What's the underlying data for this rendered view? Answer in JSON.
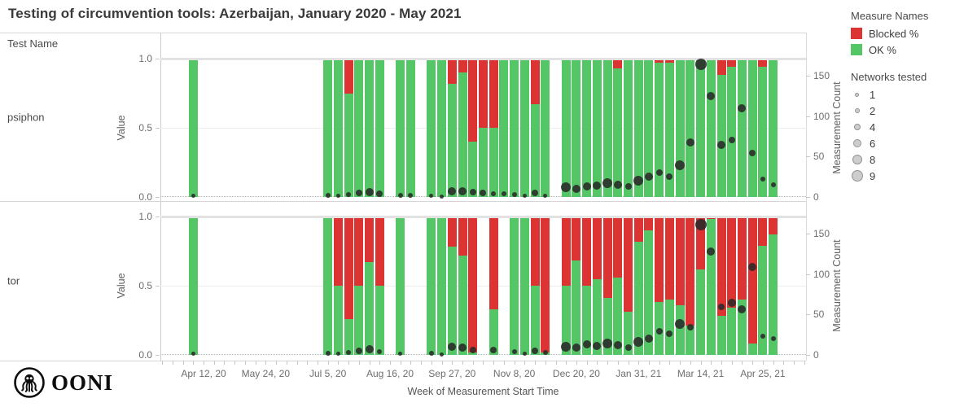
{
  "page": {
    "title": "Testing of circumvention tools: Azerbaijan, January 2020 - May 2021",
    "test_name_header": "Test Name"
  },
  "rows": [
    {
      "label": "psiphon"
    },
    {
      "label": "tor"
    }
  ],
  "axes": {
    "value_label": "Value",
    "value_ticks": [
      {
        "label": "1.0",
        "v": 1
      },
      {
        "label": "0.5",
        "v": 0.5
      },
      {
        "label": "0.0",
        "v": 0
      }
    ],
    "count_label": "Measurement Count",
    "count_ticks": [
      {
        "label": "150",
        "c": 150
      },
      {
        "label": "100",
        "c": 100
      },
      {
        "label": "50",
        "c": 50
      },
      {
        "label": "0",
        "c": 0
      }
    ],
    "x_label": "Week of Measurement Start Time",
    "x_major_ticks": [
      {
        "label": "Apr 12, 20",
        "week": 1
      },
      {
        "label": "May 24, 20",
        "week": 7
      },
      {
        "label": "Jul 5, 20",
        "week": 13
      },
      {
        "label": "Aug 16, 20",
        "week": 19
      },
      {
        "label": "Sep 27, 20",
        "week": 25
      },
      {
        "label": "Nov 8, 20",
        "week": 31
      },
      {
        "label": "Dec 20, 20",
        "week": 37
      },
      {
        "label": "Jan 31, 21",
        "week": 43
      },
      {
        "label": "Mar 14, 21",
        "week": 49
      },
      {
        "label": "Apr 25, 21",
        "week": 55
      }
    ],
    "minor_week_range": [
      -3,
      59
    ]
  },
  "legend": {
    "measure_names_title": "Measure Names",
    "measures": [
      {
        "label": "Blocked %",
        "color": "#db3432"
      },
      {
        "label": "OK %",
        "color": "#54c666"
      }
    ],
    "networks_title": "Networks tested",
    "network_sizes": [
      1,
      2,
      4,
      6,
      8,
      9
    ]
  },
  "chart_data": {
    "type": "bar",
    "subtype": "stacked-percentage bars (OK/Blocked) with measurement-count scatter overlay, small multiples by test name",
    "title": "Testing of circumvention tools: Azerbaijan, January 2020 - May 2021",
    "xlabel": "Week of Measurement Start Time",
    "value_axis": {
      "label": "Value",
      "range": [
        0,
        1
      ],
      "ticks": [
        0,
        0.5,
        1
      ]
    },
    "count_axis": {
      "label": "Measurement Count",
      "range": [
        0,
        171
      ],
      "ticks": [
        0,
        50,
        100,
        150
      ]
    },
    "colors": {
      "ok": "#54c666",
      "blocked": "#db3432",
      "dot": "#2a2a2a"
    },
    "legend_position": "right",
    "grid": "0.5 solid, 0.0 dotted baseline, top cap line",
    "bar_columns": [
      "week_index",
      "week_date",
      "ok_pct",
      "blocked_pct",
      "measurement_count",
      "networks_tested"
    ],
    "series": [
      {
        "name": "psiphon",
        "bars": [
          [
            0,
            "Apr 5, 20",
            1.0,
            0.0,
            2,
            1
          ],
          [
            13,
            "Jul 5, 20",
            1.0,
            0.0,
            2,
            2
          ],
          [
            14,
            "Jul 12, 20",
            1.0,
            0.0,
            2,
            1
          ],
          [
            15,
            "Jul 19, 20",
            0.75,
            0.25,
            3,
            2
          ],
          [
            16,
            "Jul 26, 20",
            1.0,
            0.0,
            5,
            4
          ],
          [
            17,
            "Aug 2, 20",
            1.0,
            0.0,
            6,
            6
          ],
          [
            18,
            "Aug 9, 20",
            1.0,
            0.0,
            4,
            4
          ],
          [
            20,
            "Aug 23, 20",
            1.0,
            0.0,
            2,
            2
          ],
          [
            21,
            "Aug 30, 20",
            1.0,
            0.0,
            2,
            2
          ],
          [
            23,
            "Sep 13, 20",
            1.0,
            0.0,
            2,
            1
          ],
          [
            24,
            "Sep 20, 20",
            1.0,
            0.0,
            1,
            1
          ],
          [
            25,
            "Sep 27, 20",
            0.82,
            0.18,
            7,
            6
          ],
          [
            26,
            "Oct 4, 20",
            0.9,
            0.1,
            7,
            6
          ],
          [
            27,
            "Oct 11, 20",
            0.4,
            0.6,
            6,
            4
          ],
          [
            28,
            "Oct 18, 20",
            0.5,
            0.5,
            5,
            4
          ],
          [
            29,
            "Oct 25, 20",
            0.5,
            0.5,
            4,
            2
          ],
          [
            30,
            "Nov 1, 20",
            1.0,
            0.0,
            4,
            2
          ],
          [
            31,
            "Nov 8, 20",
            1.0,
            0.0,
            3,
            2
          ],
          [
            32,
            "Nov 15, 20",
            1.0,
            0.0,
            2,
            1
          ],
          [
            33,
            "Nov 22, 20",
            0.67,
            0.33,
            5,
            4
          ],
          [
            34,
            "Nov 29, 20",
            1.0,
            0.0,
            2,
            1
          ],
          [
            36,
            "Dec 13, 20",
            1.0,
            0.0,
            12,
            8
          ],
          [
            37,
            "Dec 20, 20",
            1.0,
            0.0,
            10,
            6
          ],
          [
            38,
            "Dec 27, 20",
            1.0,
            0.0,
            13,
            6
          ],
          [
            39,
            "Jan 3, 21",
            1.0,
            0.0,
            14,
            6
          ],
          [
            40,
            "Jan 10, 21",
            1.0,
            0.0,
            17,
            8
          ],
          [
            41,
            "Jan 17, 21",
            0.93,
            0.07,
            15,
            6
          ],
          [
            42,
            "Jan 24, 21",
            1.0,
            0.0,
            13,
            4
          ],
          [
            43,
            "Jan 31, 21",
            1.0,
            0.0,
            20,
            8
          ],
          [
            44,
            "Feb 7, 21",
            1.0,
            0.0,
            25,
            6
          ],
          [
            45,
            "Feb 14, 21",
            0.97,
            0.03,
            30,
            4
          ],
          [
            46,
            "Feb 21, 21",
            0.97,
            0.03,
            25,
            4
          ],
          [
            47,
            "Feb 28, 21",
            1.0,
            0.0,
            39,
            8
          ],
          [
            48,
            "Mar 7, 21",
            1.0,
            0.0,
            67,
            6
          ],
          [
            49,
            "Mar 14, 21",
            1.0,
            0.0,
            164,
            9
          ],
          [
            50,
            "Mar 21, 21",
            1.0,
            0.0,
            125,
            6
          ],
          [
            51,
            "Mar 28, 21",
            0.88,
            0.12,
            64,
            6
          ],
          [
            52,
            "Apr 4, 21",
            0.94,
            0.06,
            70,
            4
          ],
          [
            53,
            "Apr 11, 21",
            1.0,
            0.0,
            110,
            6
          ],
          [
            54,
            "Apr 18, 21",
            1.0,
            0.0,
            54,
            4
          ],
          [
            55,
            "Apr 25, 21",
            0.94,
            0.06,
            22,
            2
          ],
          [
            56,
            "May 2, 21",
            1.0,
            0.0,
            15,
            2
          ]
        ]
      },
      {
        "name": "tor",
        "bars": [
          [
            0,
            "Apr 5, 20",
            1.0,
            0.0,
            2,
            1
          ],
          [
            13,
            "Jul 5, 20",
            1.0,
            0.0,
            2,
            2
          ],
          [
            14,
            "Jul 12, 20",
            0.5,
            0.5,
            2,
            1
          ],
          [
            15,
            "Jul 19, 20",
            0.26,
            0.74,
            3,
            2
          ],
          [
            16,
            "Jul 26, 20",
            0.5,
            0.5,
            5,
            4
          ],
          [
            17,
            "Aug 2, 20",
            0.67,
            0.33,
            7,
            6
          ],
          [
            18,
            "Aug 9, 20",
            0.5,
            0.5,
            4,
            2
          ],
          [
            20,
            "Aug 23, 20",
            1.0,
            0.0,
            2,
            1
          ],
          [
            23,
            "Sep 13, 20",
            1.0,
            0.0,
            2,
            2
          ],
          [
            24,
            "Sep 20, 20",
            1.0,
            0.0,
            1,
            1
          ],
          [
            25,
            "Sep 27, 20",
            0.78,
            0.22,
            10,
            6
          ],
          [
            26,
            "Oct 4, 20",
            0.72,
            0.28,
            9,
            6
          ],
          [
            27,
            "Oct 11, 20",
            0.02,
            0.98,
            6,
            4
          ],
          [
            29,
            "Oct 25, 20",
            0.33,
            0.67,
            6,
            4
          ],
          [
            31,
            "Nov 8, 20",
            1.0,
            0.0,
            4,
            2
          ],
          [
            32,
            "Nov 15, 20",
            1.0,
            0.0,
            2,
            1
          ],
          [
            33,
            "Nov 22, 20",
            0.5,
            0.5,
            5,
            4
          ],
          [
            34,
            "Nov 29, 20",
            0.02,
            0.98,
            3,
            2
          ],
          [
            36,
            "Dec 13, 20",
            0.5,
            0.5,
            10,
            8
          ],
          [
            37,
            "Dec 20, 20",
            0.68,
            0.32,
            9,
            6
          ],
          [
            38,
            "Dec 27, 20",
            0.5,
            0.5,
            13,
            6
          ],
          [
            39,
            "Jan 3, 21",
            0.55,
            0.45,
            11,
            6
          ],
          [
            40,
            "Jan 10, 21",
            0.41,
            0.59,
            14,
            8
          ],
          [
            41,
            "Jan 17, 21",
            0.56,
            0.44,
            12,
            6
          ],
          [
            42,
            "Jan 24, 21",
            0.31,
            0.69,
            9,
            4
          ],
          [
            43,
            "Jan 31, 21",
            0.82,
            0.18,
            16,
            8
          ],
          [
            44,
            "Feb 7, 21",
            0.9,
            0.1,
            20,
            6
          ],
          [
            45,
            "Feb 14, 21",
            0.38,
            0.62,
            29,
            4
          ],
          [
            46,
            "Feb 21, 21",
            0.4,
            0.6,
            26,
            4
          ],
          [
            47,
            "Feb 28, 21",
            0.36,
            0.64,
            38,
            8
          ],
          [
            48,
            "Mar 7, 21",
            0.21,
            0.79,
            34,
            4
          ],
          [
            49,
            "Mar 14, 21",
            0.62,
            0.38,
            161,
            9
          ],
          [
            50,
            "Mar 21, 21",
            0.98,
            0.02,
            128,
            6
          ],
          [
            51,
            "Mar 28, 21",
            0.28,
            0.72,
            59,
            4
          ],
          [
            52,
            "Apr 4, 21",
            0.34,
            0.66,
            64,
            6
          ],
          [
            53,
            "Apr 11, 21",
            0.4,
            0.6,
            56,
            6
          ],
          [
            54,
            "Apr 18, 21",
            0.08,
            0.92,
            109,
            6
          ],
          [
            55,
            "Apr 25, 21",
            0.79,
            0.21,
            23,
            2
          ],
          [
            56,
            "May 2, 21",
            0.87,
            0.13,
            20,
            2
          ]
        ]
      }
    ]
  },
  "logo": {
    "text": "OONI"
  }
}
